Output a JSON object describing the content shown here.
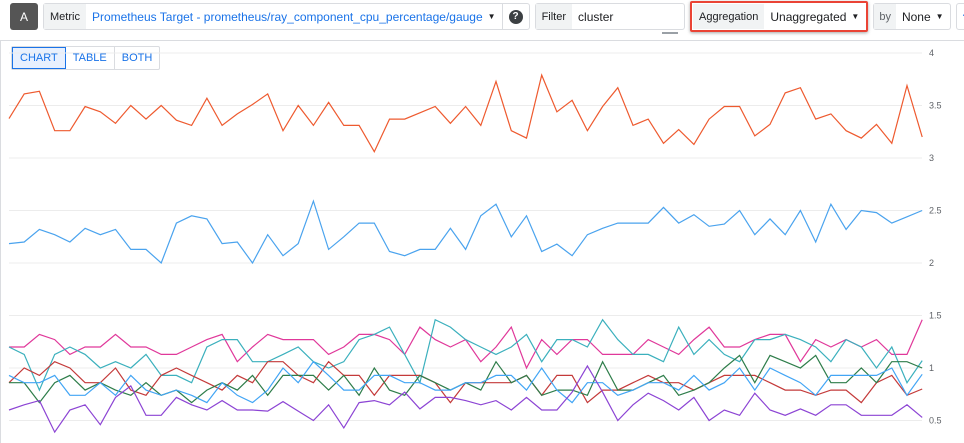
{
  "query": {
    "badge": "A"
  },
  "metric": {
    "label": "Metric",
    "value": "Prometheus Target - prometheus/ray_component_cpu_percentage/gauge",
    "help_icon": "question-circle-icon"
  },
  "filter": {
    "label": "Filter",
    "value": "cluster"
  },
  "aggregation": {
    "label": "Aggregation",
    "value": "Unaggregated",
    "highlight_color": "#ea4335"
  },
  "group_by": {
    "label": "by",
    "value": "None"
  },
  "add_button": {
    "label": "+"
  },
  "view_tabs": [
    {
      "label": "CHART",
      "active": true
    },
    {
      "label": "TABLE"
    },
    {
      "label": "BOTH"
    }
  ],
  "chart_data": {
    "type": "line",
    "ylim": [
      0.5,
      4
    ],
    "y_ticks": [
      "4",
      "3.5",
      "3",
      "2.5",
      "2",
      "1.5",
      "1",
      "0.5"
    ],
    "y_tick_values": [
      4,
      3.5,
      3,
      2.5,
      2,
      1.5,
      1,
      0.5
    ],
    "y_axis_side": "right",
    "grid": true,
    "series": [
      {
        "color": "#ee5a2f",
        "values": [
          3.375,
          3.61,
          3.635,
          3.26,
          3.26,
          3.49,
          3.44,
          3.33,
          3.5,
          3.37,
          3.5,
          3.36,
          3.31,
          3.57,
          3.31,
          3.42,
          3.51,
          3.61,
          3.26,
          3.5,
          3.31,
          3.53,
          3.31,
          3.31,
          3.06,
          3.37,
          3.37,
          3.43,
          3.49,
          3.33,
          3.49,
          3.31,
          3.73,
          3.26,
          3.19,
          3.79,
          3.44,
          3.55,
          3.26,
          3.49,
          3.67,
          3.31,
          3.37,
          3.14,
          3.27,
          3.13,
          3.37,
          3.49,
          3.49,
          3.21,
          3.32,
          3.62,
          3.67,
          3.37,
          3.42,
          3.26,
          3.19,
          3.32,
          3.14,
          3.69,
          3.2
        ]
      },
      {
        "color": "#4aa3ee",
        "values": [
          2.185,
          2.2,
          2.32,
          2.27,
          2.2,
          2.33,
          2.27,
          2.32,
          2.13,
          2.13,
          2.0,
          2.38,
          2.45,
          2.42,
          2.185,
          2.2,
          2.0,
          2.27,
          2.07,
          2.185,
          2.59,
          2.13,
          2.25,
          2.38,
          2.38,
          2.11,
          2.07,
          2.13,
          2.13,
          2.33,
          2.13,
          2.45,
          2.56,
          2.25,
          2.45,
          2.11,
          2.18,
          2.07,
          2.27,
          2.33,
          2.38,
          2.38,
          2.38,
          2.53,
          2.38,
          2.46,
          2.35,
          2.37,
          2.5,
          2.27,
          2.42,
          2.27,
          2.5,
          2.2,
          2.56,
          2.32,
          2.5,
          2.48,
          2.38,
          2.44,
          2.5
        ]
      },
      {
        "color": "#e0389a",
        "values": [
          1.2,
          1.2,
          1.32,
          1.27,
          1.13,
          1.2,
          1.2,
          1.32,
          1.2,
          1.2,
          1.13,
          1.13,
          1.2,
          1.27,
          1.32,
          1.06,
          1.2,
          1.32,
          1.27,
          1.27,
          1.27,
          1.13,
          1.2,
          1.32,
          1.32,
          1.27,
          1.13,
          1.39,
          1.27,
          1.2,
          1.27,
          1.06,
          1.2,
          1.39,
          1.0,
          1.27,
          1.13,
          1.27,
          1.27,
          1.13,
          1.13,
          1.13,
          1.27,
          1.2,
          1.13,
          1.27,
          1.39,
          1.2,
          1.2,
          1.27,
          1.32,
          1.32,
          1.06,
          1.27,
          1.2,
          1.27,
          1.2,
          1.27,
          1.13,
          1.13,
          1.46
        ]
      },
      {
        "color": "#3bb0bd",
        "values": [
          1.2,
          1.13,
          0.79,
          1.13,
          1.2,
          1.13,
          1.0,
          1.06,
          1.0,
          1.13,
          0.93,
          0.93,
          0.86,
          1.2,
          1.27,
          1.27,
          1.06,
          1.06,
          1.13,
          1.2,
          1.06,
          1.0,
          1.06,
          1.27,
          1.32,
          1.39,
          1.13,
          0.86,
          1.46,
          1.39,
          1.27,
          1.2,
          1.13,
          1.2,
          1.32,
          1.06,
          1.27,
          1.27,
          1.2,
          1.46,
          1.27,
          1.13,
          1.13,
          1.06,
          1.39,
          1.13,
          1.27,
          1.13,
          1.06,
          1.27,
          1.27,
          1.32,
          1.27,
          1.2,
          1.06,
          1.27,
          1.2,
          1.0,
          1.2,
          0.86,
          1.07
        ]
      },
      {
        "color": "#c43a3a",
        "values": [
          0.86,
          1.0,
          0.93,
          1.06,
          1.0,
          0.86,
          0.86,
          1.0,
          0.79,
          0.74,
          0.93,
          1.0,
          0.93,
          0.86,
          0.79,
          0.93,
          0.86,
          1.06,
          1.06,
          0.93,
          0.86,
          1.06,
          0.93,
          0.93,
          0.74,
          0.93,
          0.93,
          0.93,
          0.86,
          0.67,
          0.86,
          0.86,
          0.86,
          0.86,
          0.93,
          0.74,
          0.93,
          0.93,
          0.67,
          0.79,
          0.79,
          0.86,
          0.93,
          0.86,
          0.86,
          0.79,
          0.86,
          0.93,
          0.93,
          0.93,
          0.86,
          0.79,
          0.79,
          0.74,
          0.79,
          0.79,
          0.67,
          0.86,
          0.93,
          0.74,
          0.8
        ]
      },
      {
        "color": "#2e7d4a",
        "values": [
          0.86,
          0.86,
          0.67,
          0.86,
          0.93,
          0.79,
          0.86,
          0.79,
          0.74,
          0.86,
          0.74,
          0.79,
          0.67,
          0.79,
          0.86,
          0.79,
          0.93,
          0.74,
          0.93,
          0.93,
          0.93,
          0.79,
          0.93,
          0.74,
          1.0,
          0.79,
          0.74,
          0.93,
          0.86,
          0.79,
          0.86,
          0.79,
          1.06,
          0.86,
          0.93,
          0.74,
          0.79,
          0.79,
          0.74,
          1.06,
          0.79,
          0.79,
          0.86,
          0.93,
          0.74,
          0.79,
          0.86,
          1.0,
          1.12,
          0.86,
          1.12,
          1.06,
          1.0,
          1.12,
          0.86,
          0.86,
          1.0,
          0.86,
          1.06,
          1.06,
          1.0
        ]
      },
      {
        "color": "#42a5f5",
        "values": [
          0.93,
          0.86,
          0.86,
          0.93,
          0.74,
          0.74,
          0.86,
          0.74,
          0.93,
          0.79,
          0.74,
          0.79,
          0.74,
          0.67,
          0.86,
          0.74,
          0.67,
          0.79,
          1.0,
          0.86,
          1.06,
          0.93,
          0.79,
          0.79,
          0.93,
          0.93,
          0.86,
          0.86,
          0.79,
          0.79,
          0.86,
          0.86,
          0.93,
          0.93,
          0.79,
          1.0,
          0.79,
          0.67,
          0.86,
          0.86,
          0.74,
          0.79,
          0.86,
          0.86,
          0.79,
          0.93,
          0.79,
          0.86,
          1.0,
          0.79,
          1.0,
          0.93,
          0.86,
          0.74,
          0.93,
          0.93,
          0.93,
          0.93,
          1.0,
          0.74,
          0.94
        ]
      },
      {
        "color": "#8c44d4",
        "values": [
          0.6,
          0.65,
          0.69,
          0.39,
          0.6,
          0.65,
          0.46,
          0.72,
          0.83,
          0.55,
          0.55,
          0.72,
          0.65,
          0.6,
          0.69,
          0.6,
          0.6,
          0.59,
          0.68,
          0.59,
          0.5,
          0.65,
          0.43,
          0.67,
          0.69,
          0.65,
          0.77,
          0.61,
          0.72,
          0.72,
          0.69,
          0.65,
          0.69,
          0.6,
          0.72,
          0.6,
          0.6,
          0.77,
          1.02,
          0.77,
          0.5,
          0.65,
          0.76,
          0.69,
          0.6,
          0.72,
          0.5,
          0.6,
          0.55,
          0.76,
          0.6,
          0.55,
          0.61,
          0.55,
          0.65,
          0.65,
          0.55,
          0.55,
          0.55,
          0.65,
          0.53
        ]
      }
    ]
  }
}
